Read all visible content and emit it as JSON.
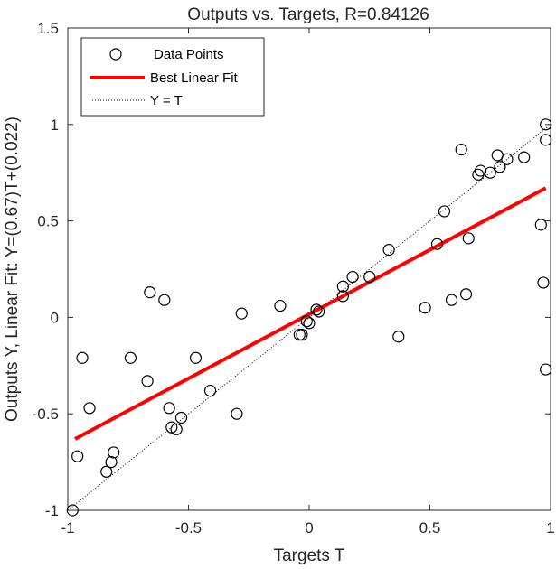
{
  "chart_data": {
    "type": "scatter",
    "title": "Outputs vs. Targets, R=0.84126",
    "xlabel": "Targets T",
    "ylabel": "Outputs Y,  Linear Fit: Y=(0.67)T+(0.022)",
    "xlim": [
      -1,
      1
    ],
    "ylim": [
      -1,
      1.5
    ],
    "xticks": [
      -1,
      -0.5,
      0,
      0.5,
      1
    ],
    "xtick_labels": [
      "-1",
      "-0.5",
      "0",
      "0.5",
      "1"
    ],
    "yticks": [
      -1,
      -0.5,
      0,
      0.5,
      1,
      1.5
    ],
    "ytick_labels": [
      "-1",
      "-0.5",
      "0",
      "0.5",
      "1",
      "1.5"
    ],
    "grid": false,
    "legend_position": "top-left",
    "series": [
      {
        "name": "Data Points",
        "kind": "markers",
        "marker": "open-circle",
        "color": "#000000",
        "x": [
          -0.98,
          -0.96,
          -0.94,
          -0.91,
          -0.84,
          -0.82,
          -0.81,
          -0.74,
          -0.67,
          -0.66,
          -0.6,
          -0.58,
          -0.57,
          -0.55,
          -0.53,
          -0.47,
          -0.41,
          -0.3,
          -0.28,
          -0.12,
          -0.04,
          -0.03,
          -0.01,
          0.0,
          0.03,
          0.04,
          0.14,
          0.14,
          0.18,
          0.25,
          0.33,
          0.37,
          0.48,
          0.53,
          0.56,
          0.59,
          0.63,
          0.65,
          0.66,
          0.7,
          0.71,
          0.75,
          0.78,
          0.79,
          0.82,
          0.89,
          0.96,
          0.97,
          0.98,
          0.98,
          0.98
        ],
        "y": [
          -1.0,
          -0.72,
          -0.21,
          -0.47,
          -0.8,
          -0.75,
          -0.7,
          -0.21,
          -0.33,
          0.13,
          0.09,
          -0.47,
          -0.57,
          -0.58,
          -0.52,
          -0.21,
          -0.38,
          -0.5,
          0.02,
          0.06,
          -0.09,
          -0.09,
          -0.02,
          -0.03,
          0.04,
          0.03,
          0.11,
          0.16,
          0.21,
          0.21,
          0.35,
          -0.1,
          0.05,
          0.38,
          0.55,
          0.09,
          0.87,
          0.12,
          0.41,
          0.74,
          0.76,
          0.75,
          0.84,
          0.78,
          0.82,
          0.83,
          0.48,
          0.18,
          1.0,
          0.92,
          -0.27
        ]
      },
      {
        "name": "Best Linear Fit",
        "kind": "line",
        "style": "solid",
        "color": "#ff0000",
        "x": [
          -0.97,
          0.98
        ],
        "y": [
          -0.63,
          0.67
        ]
      },
      {
        "name": "Y = T",
        "kind": "line",
        "style": "dotted",
        "color": "#000000",
        "x": [
          -1,
          1
        ],
        "y": [
          -1,
          1
        ]
      }
    ]
  }
}
